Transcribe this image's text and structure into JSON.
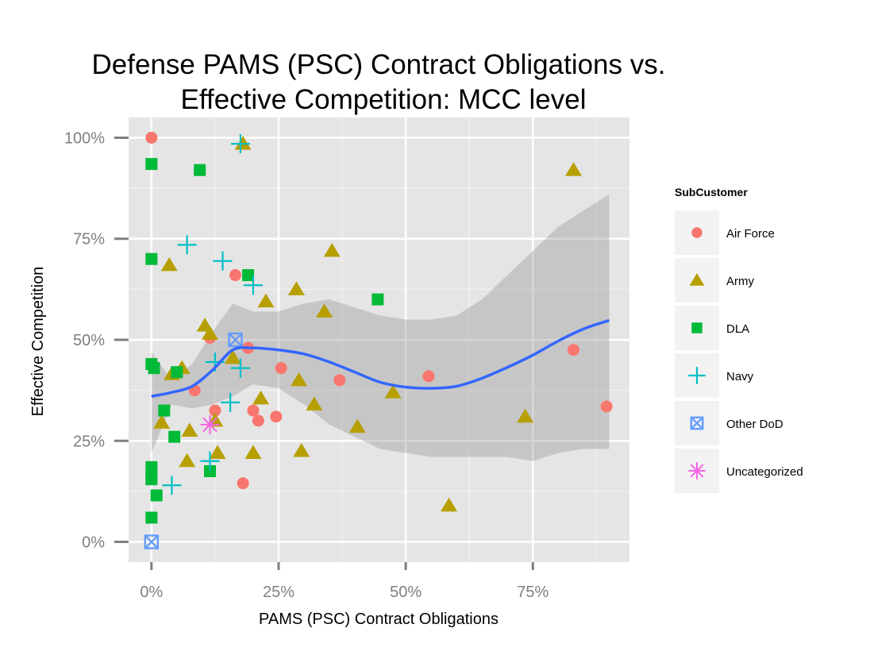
{
  "chart_data": {
    "type": "scatter",
    "title_line1": "Defense PAMS (PSC) Contract Obligations vs.",
    "title_line2": "Effective Competition: MCC level",
    "xlabel": "PAMS (PSC) Contract Obligations",
    "ylabel": "Effective Competition",
    "xlim": [
      -0.045,
      0.94
    ],
    "ylim": [
      -0.05,
      1.05
    ],
    "x_ticks": [
      {
        "value": 0,
        "label": "0%"
      },
      {
        "value": 0.25,
        "label": "25%"
      },
      {
        "value": 0.5,
        "label": "50%"
      },
      {
        "value": 0.75,
        "label": "75%"
      }
    ],
    "y_ticks": [
      {
        "value": 0,
        "label": "0%"
      },
      {
        "value": 0.25,
        "label": "25%"
      },
      {
        "value": 0.5,
        "label": "50%"
      },
      {
        "value": 0.75,
        "label": "75%"
      },
      {
        "value": 1,
        "label": "100%"
      }
    ],
    "grid": true,
    "legend_position": "right",
    "legend_title": "SubCustomer",
    "series": [
      {
        "name": "Air Force",
        "shape": "circle",
        "color": "#F8766D",
        "points": [
          [
            0.0,
            1.0
          ],
          [
            0.165,
            0.66
          ],
          [
            0.19,
            0.48
          ],
          [
            0.115,
            0.505
          ],
          [
            0.085,
            0.375
          ],
          [
            0.125,
            0.325
          ],
          [
            0.2,
            0.325
          ],
          [
            0.21,
            0.3
          ],
          [
            0.245,
            0.31
          ],
          [
            0.255,
            0.43
          ],
          [
            0.18,
            0.145
          ],
          [
            0.37,
            0.4
          ],
          [
            0.545,
            0.41
          ],
          [
            0.83,
            0.475
          ],
          [
            0.895,
            0.335
          ]
        ]
      },
      {
        "name": "Army",
        "shape": "triangle",
        "color": "#B79F00",
        "points": [
          [
            0.18,
            0.985
          ],
          [
            0.83,
            0.92
          ],
          [
            0.355,
            0.72
          ],
          [
            0.035,
            0.685
          ],
          [
            0.285,
            0.625
          ],
          [
            0.225,
            0.595
          ],
          [
            0.34,
            0.57
          ],
          [
            0.105,
            0.535
          ],
          [
            0.115,
            0.515
          ],
          [
            0.16,
            0.455
          ],
          [
            0.06,
            0.43
          ],
          [
            0.04,
            0.415
          ],
          [
            0.29,
            0.4
          ],
          [
            0.475,
            0.37
          ],
          [
            0.215,
            0.355
          ],
          [
            0.32,
            0.34
          ],
          [
            0.125,
            0.3
          ],
          [
            0.02,
            0.295
          ],
          [
            0.405,
            0.285
          ],
          [
            0.075,
            0.275
          ],
          [
            0.13,
            0.22
          ],
          [
            0.2,
            0.22
          ],
          [
            0.295,
            0.225
          ],
          [
            0.07,
            0.2
          ],
          [
            0.735,
            0.31
          ],
          [
            0.585,
            0.09
          ]
        ]
      },
      {
        "name": "DLA",
        "shape": "square",
        "color": "#00BA38",
        "points": [
          [
            0.0,
            0.935
          ],
          [
            0.095,
            0.92
          ],
          [
            0.0,
            0.7
          ],
          [
            0.19,
            0.66
          ],
          [
            0.445,
            0.6
          ],
          [
            0.0,
            0.44
          ],
          [
            0.005,
            0.43
          ],
          [
            0.05,
            0.42
          ],
          [
            0.025,
            0.325
          ],
          [
            0.045,
            0.26
          ],
          [
            0.0,
            0.185
          ],
          [
            0.0,
            0.165
          ],
          [
            0.0,
            0.155
          ],
          [
            0.115,
            0.175
          ],
          [
            0.01,
            0.115
          ],
          [
            0.0,
            0.06
          ]
        ]
      },
      {
        "name": "Navy",
        "shape": "plus",
        "color": "#00BFC4",
        "points": [
          [
            0.175,
            0.985
          ],
          [
            0.07,
            0.735
          ],
          [
            0.14,
            0.695
          ],
          [
            0.2,
            0.635
          ],
          [
            0.125,
            0.445
          ],
          [
            0.175,
            0.43
          ],
          [
            0.155,
            0.345
          ],
          [
            0.115,
            0.2
          ],
          [
            0.04,
            0.14
          ]
        ]
      },
      {
        "name": "Other DoD",
        "shape": "boxx",
        "color": "#619CFF",
        "points": [
          [
            0.165,
            0.5
          ],
          [
            0.0,
            0.0
          ]
        ]
      },
      {
        "name": "Uncategorized",
        "shape": "asterisk",
        "color": "#F564E3",
        "points": [
          [
            0.115,
            0.29
          ]
        ]
      }
    ],
    "smooth": {
      "color": "#3366FF",
      "x": [
        0.0,
        0.04,
        0.08,
        0.12,
        0.16,
        0.2,
        0.25,
        0.3,
        0.35,
        0.4,
        0.45,
        0.5,
        0.55,
        0.6,
        0.65,
        0.7,
        0.75,
        0.8,
        0.85,
        0.9
      ],
      "y": [
        0.36,
        0.37,
        0.385,
        0.425,
        0.475,
        0.48,
        0.475,
        0.465,
        0.445,
        0.42,
        0.395,
        0.383,
        0.38,
        0.385,
        0.405,
        0.432,
        0.462,
        0.497,
        0.527,
        0.548
      ],
      "upper": [
        0.47,
        0.4,
        0.44,
        0.52,
        0.59,
        0.57,
        0.57,
        0.59,
        0.6,
        0.58,
        0.56,
        0.55,
        0.55,
        0.56,
        0.6,
        0.66,
        0.72,
        0.78,
        0.82,
        0.86
      ],
      "lower": [
        0.22,
        0.34,
        0.33,
        0.34,
        0.36,
        0.39,
        0.38,
        0.34,
        0.29,
        0.26,
        0.23,
        0.22,
        0.21,
        0.21,
        0.21,
        0.21,
        0.2,
        0.22,
        0.23,
        0.23
      ]
    }
  }
}
